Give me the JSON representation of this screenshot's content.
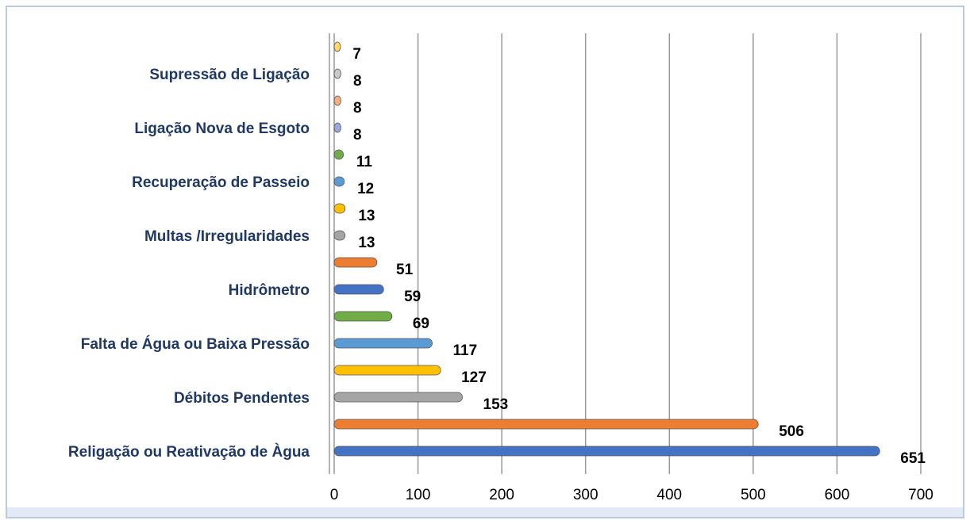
{
  "chart_data": {
    "type": "bar",
    "orientation": "horizontal",
    "categories": [
      "Religação ou Reativação de Àgua",
      null,
      "Débitos  Pendentes",
      null,
      "Falta de Água ou Baixa Pressão",
      null,
      "Hidrômetro",
      null,
      "Multas /Irregularidades",
      null,
      "Recuperação de Passeio",
      null,
      "Ligação Nova de Esgoto",
      null,
      "Supressão de Ligação",
      null
    ],
    "values": [
      651,
      506,
      153,
      127,
      117,
      69,
      59,
      51,
      13,
      13,
      12,
      11,
      8,
      8,
      8,
      7
    ],
    "colors": [
      "#4472c4",
      "#ed7d31",
      "#a5a5a5",
      "#ffc000",
      "#5b9bd5",
      "#70ad47",
      "#4472c4",
      "#ed7d31",
      "#a5a5a5",
      "#ffc000",
      "#5b9bd5",
      "#70ad47",
      "#9fa8da",
      "#f4b183",
      "#c9c9c9",
      "#ffd966"
    ],
    "xlim": [
      0,
      700
    ],
    "xticks": [
      0,
      100,
      200,
      300,
      400,
      500,
      600,
      700
    ],
    "grid": true
  }
}
